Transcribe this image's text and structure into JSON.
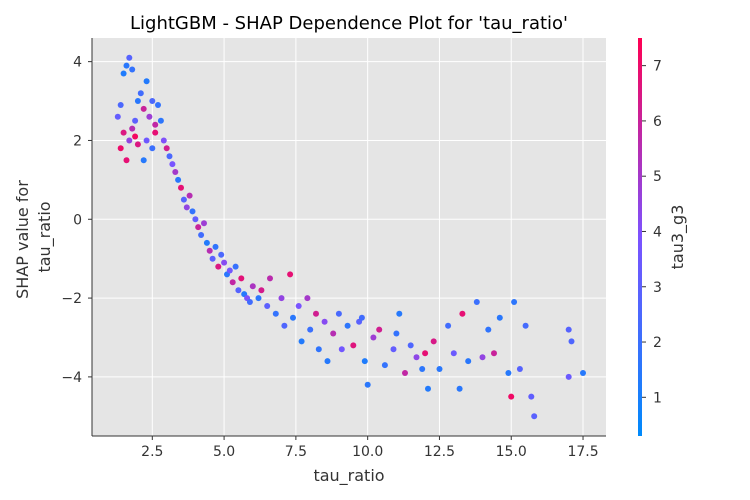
{
  "chart_data": {
    "type": "scatter",
    "title": "LightGBM - SHAP Dependence Plot for 'tau_ratio'",
    "xlabel": "tau_ratio",
    "ylabel": [
      "SHAP value for",
      "tau_ratio"
    ],
    "colorbar_label": "tau3_g3",
    "xlim": [
      0.4,
      18.3
    ],
    "ylim": [
      -5.5,
      4.6
    ],
    "xticks": [
      2.5,
      5.0,
      7.5,
      10.0,
      12.5,
      15.0,
      17.5
    ],
    "xtick_labels": [
      "2.5",
      "5.0",
      "7.5",
      "10.0",
      "12.5",
      "15.0",
      "17.5"
    ],
    "yticks": [
      -4,
      -2,
      0,
      2,
      4
    ],
    "ytick_labels": [
      "−4",
      "−2",
      "0",
      "2",
      "4"
    ],
    "colorbar_range": [
      0.3,
      7.5
    ],
    "colorbar_ticks": [
      1,
      2,
      3,
      4,
      5,
      6,
      7
    ],
    "colormap": [
      "#008afb",
      "#7c52ff",
      "#ff0052"
    ],
    "background": "#e5e5e5",
    "grid": true,
    "points": [
      [
        1.3,
        2.6,
        3.2
      ],
      [
        1.4,
        2.9,
        2.5
      ],
      [
        1.5,
        3.7,
        1.2
      ],
      [
        1.6,
        3.9,
        1.5
      ],
      [
        1.7,
        4.1,
        2.8
      ],
      [
        1.8,
        3.8,
        1.8
      ],
      [
        1.5,
        2.2,
        6.5
      ],
      [
        1.4,
        1.8,
        7.0
      ],
      [
        1.6,
        1.5,
        6.8
      ],
      [
        1.7,
        2.0,
        4.5
      ],
      [
        1.8,
        2.3,
        5.5
      ],
      [
        1.9,
        2.5,
        3.0
      ],
      [
        2.0,
        3.0,
        1.5
      ],
      [
        2.1,
        3.2,
        2.2
      ],
      [
        2.2,
        2.8,
        6.0
      ],
      [
        2.3,
        3.5,
        1.3
      ],
      [
        2.4,
        2.6,
        4.8
      ],
      [
        2.5,
        3.0,
        2.5
      ],
      [
        2.6,
        2.4,
        5.8
      ],
      [
        2.7,
        2.9,
        1.8
      ],
      [
        1.9,
        2.1,
        7.2
      ],
      [
        2.0,
        1.9,
        6.5
      ],
      [
        2.2,
        1.5,
        1.4
      ],
      [
        2.3,
        2.0,
        3.5
      ],
      [
        2.5,
        1.8,
        2.0
      ],
      [
        2.6,
        2.2,
        6.8
      ],
      [
        2.8,
        2.5,
        1.6
      ],
      [
        2.9,
        2.0,
        4.0
      ],
      [
        3.0,
        1.8,
        6.2
      ],
      [
        3.1,
        1.6,
        2.5
      ],
      [
        3.2,
        1.4,
        3.8
      ],
      [
        3.3,
        1.2,
        5.0
      ],
      [
        3.4,
        1.0,
        1.5
      ],
      [
        3.5,
        0.8,
        6.8
      ],
      [
        3.6,
        0.5,
        2.8
      ],
      [
        3.7,
        0.3,
        4.5
      ],
      [
        3.8,
        0.6,
        5.5
      ],
      [
        3.9,
        0.2,
        1.8
      ],
      [
        4.0,
        0.0,
        3.2
      ],
      [
        4.1,
        -0.2,
        6.0
      ],
      [
        4.2,
        -0.4,
        2.2
      ],
      [
        4.3,
        -0.1,
        4.8
      ],
      [
        4.4,
        -0.6,
        1.3
      ],
      [
        4.5,
        -0.8,
        5.5
      ],
      [
        4.6,
        -1.0,
        3.0
      ],
      [
        4.7,
        -0.7,
        1.7
      ],
      [
        4.8,
        -1.2,
        6.5
      ],
      [
        4.9,
        -0.9,
        2.5
      ],
      [
        5.0,
        -1.1,
        4.2
      ],
      [
        5.1,
        -1.4,
        1.5
      ],
      [
        5.2,
        -1.3,
        3.6
      ],
      [
        5.3,
        -1.6,
        5.8
      ],
      [
        5.4,
        -1.2,
        1.9
      ],
      [
        5.5,
        -1.8,
        2.8
      ],
      [
        5.6,
        -1.5,
        6.7
      ],
      [
        5.7,
        -1.9,
        1.4
      ],
      [
        5.8,
        -2.0,
        4.0
      ],
      [
        5.9,
        -2.1,
        2.2
      ],
      [
        6.0,
        -1.7,
        5.2
      ],
      [
        6.2,
        -2.0,
        1.6
      ],
      [
        6.3,
        -1.8,
        6.3
      ],
      [
        6.5,
        -2.2,
        3.0
      ],
      [
        6.6,
        -1.5,
        5.6
      ],
      [
        6.8,
        -2.4,
        1.8
      ],
      [
        7.0,
        -2.0,
        4.5
      ],
      [
        7.1,
        -2.7,
        2.6
      ],
      [
        7.3,
        -1.4,
        6.8
      ],
      [
        7.4,
        -2.5,
        1.5
      ],
      [
        7.6,
        -2.2,
        3.8
      ],
      [
        7.7,
        -3.1,
        1.3
      ],
      [
        7.9,
        -2.0,
        5.0
      ],
      [
        8.0,
        -2.8,
        2.0
      ],
      [
        8.2,
        -2.4,
        6.2
      ],
      [
        8.3,
        -3.3,
        1.7
      ],
      [
        8.5,
        -2.6,
        4.2
      ],
      [
        8.6,
        -3.6,
        1.4
      ],
      [
        8.8,
        -2.9,
        5.5
      ],
      [
        9.0,
        -2.4,
        2.4
      ],
      [
        9.1,
        -3.3,
        3.6
      ],
      [
        9.3,
        -2.7,
        1.6
      ],
      [
        9.5,
        -3.2,
        6.6
      ],
      [
        9.7,
        -2.6,
        2.9
      ],
      [
        9.9,
        -3.6,
        1.2
      ],
      [
        10.0,
        -4.2,
        1.5
      ],
      [
        10.2,
        -3.0,
        4.8
      ],
      [
        10.4,
        -2.8,
        6.2
      ],
      [
        10.6,
        -3.7,
        1.8
      ],
      [
        10.9,
        -3.3,
        3.2
      ],
      [
        11.1,
        -2.4,
        1.4
      ],
      [
        11.3,
        -3.9,
        5.8
      ],
      [
        11.5,
        -3.2,
        2.6
      ],
      [
        11.7,
        -3.5,
        4.4
      ],
      [
        11.9,
        -3.8,
        1.6
      ],
      [
        12.1,
        -4.3,
        1.3
      ],
      [
        12.3,
        -3.1,
        6.4
      ],
      [
        12.5,
        -3.8,
        1.5
      ],
      [
        12.8,
        -2.7,
        2.2
      ],
      [
        13.0,
        -3.4,
        3.4
      ],
      [
        13.3,
        -2.4,
        6.8
      ],
      [
        13.5,
        -3.6,
        1.5
      ],
      [
        13.8,
        -2.1,
        2.0
      ],
      [
        14.0,
        -3.5,
        4.5
      ],
      [
        14.2,
        -2.8,
        1.7
      ],
      [
        14.4,
        -3.4,
        6.0
      ],
      [
        14.6,
        -2.5,
        1.5
      ],
      [
        14.9,
        -3.9,
        1.4
      ],
      [
        15.0,
        -4.5,
        7.1
      ],
      [
        15.1,
        -2.1,
        1.6
      ],
      [
        15.3,
        -3.8,
        2.8
      ],
      [
        15.5,
        -2.7,
        2.3
      ],
      [
        15.7,
        -4.5,
        3.1
      ],
      [
        15.8,
        -5.0,
        2.9
      ],
      [
        17.0,
        -2.8,
        2.8
      ],
      [
        17.1,
        -3.1,
        2.6
      ],
      [
        17.0,
        -4.0,
        3.4
      ],
      [
        17.5,
        -3.9,
        1.4
      ],
      [
        13.2,
        -4.3,
        1.5
      ],
      [
        11.0,
        -2.9,
        1.8
      ],
      [
        12.0,
        -3.4,
        6.8
      ],
      [
        9.8,
        -2.5,
        2.2
      ]
    ]
  }
}
